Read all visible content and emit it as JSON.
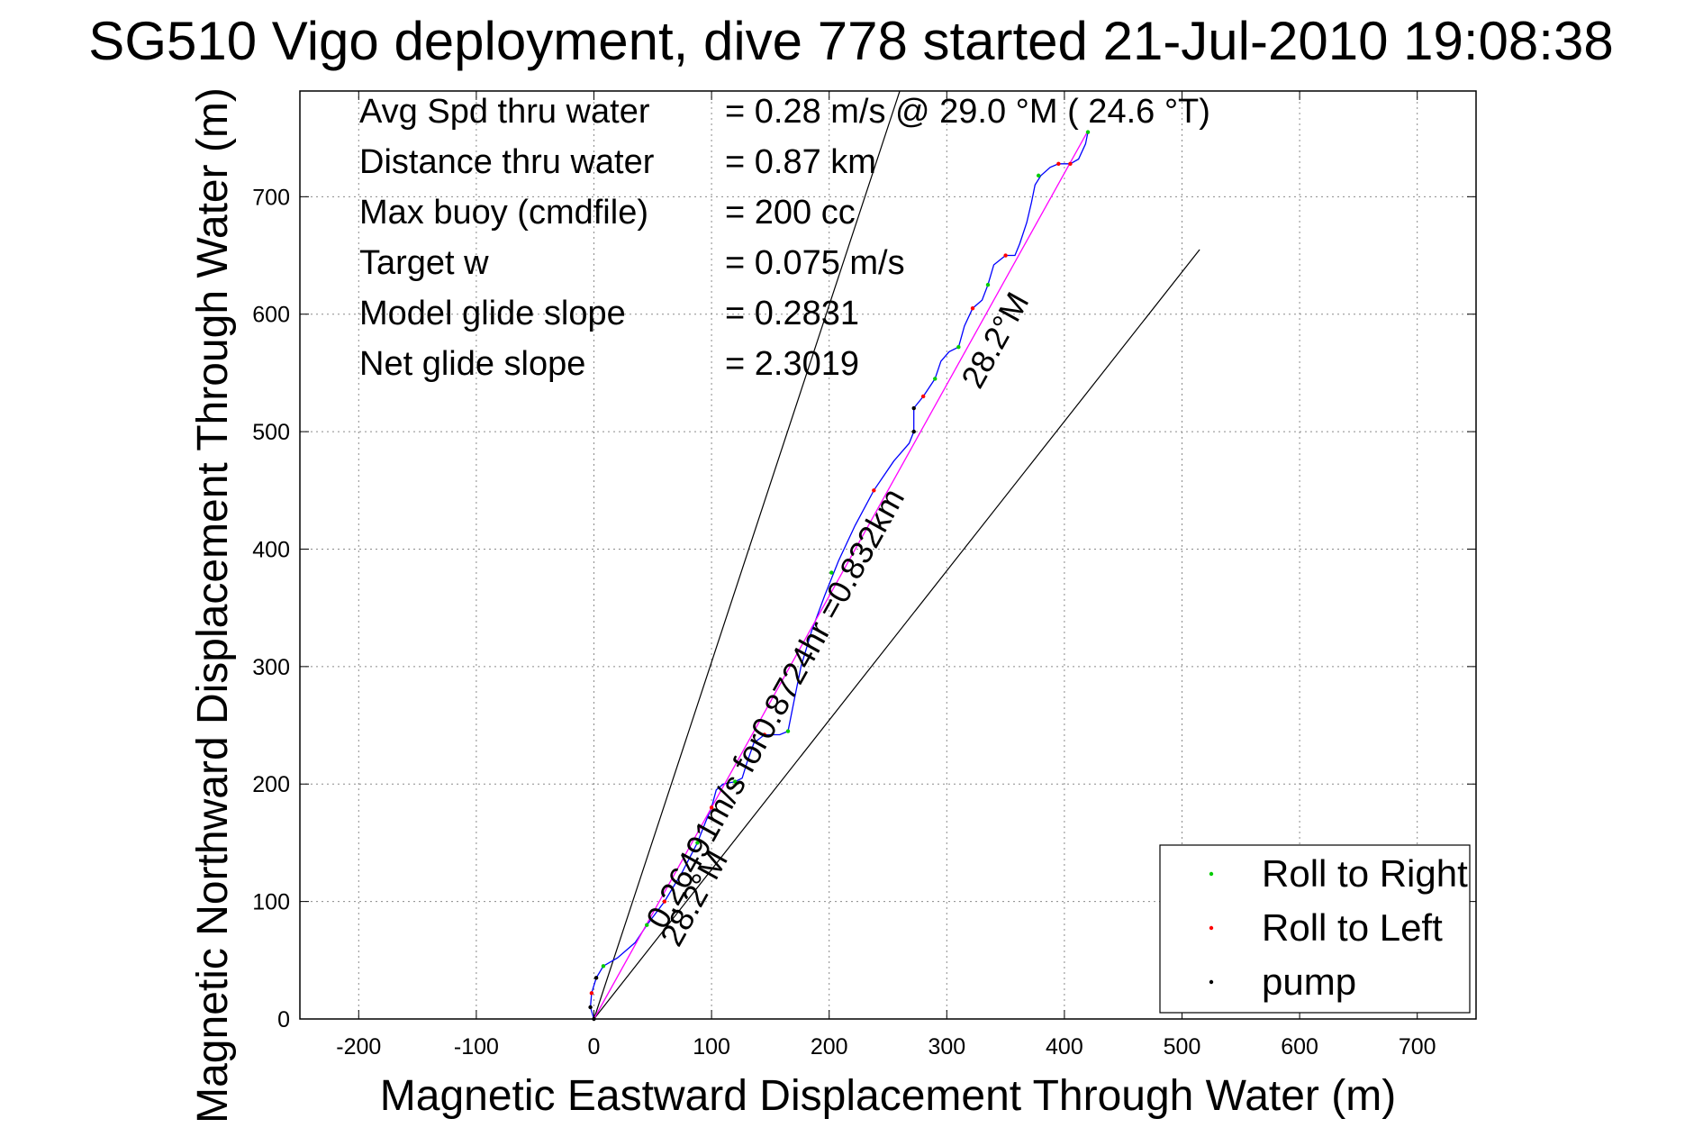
{
  "chart_data": {
    "type": "line",
    "title": "SG510 Vigo deployment, dive 778 started 21-Jul-2010 19:08:38",
    "xlabel": "Magnetic Eastward Displacement Through Water (m)",
    "ylabel": "Magnetic Northward Displacement Through Water (m)",
    "xlim": [
      -250,
      750
    ],
    "ylim": [
      0,
      790
    ],
    "xticks": [
      -200,
      -100,
      0,
      100,
      200,
      300,
      400,
      500,
      600,
      700
    ],
    "yticks": [
      0,
      100,
      200,
      300,
      400,
      500,
      600,
      700
    ],
    "grid": true,
    "legend_position": "bottom-right",
    "info_lines": [
      {
        "label": "Avg Spd thru water",
        "value": "=  0.28 m/s @  29.0 °M ( 24.6 °T)"
      },
      {
        "label": "Distance thru water",
        "value": "=  0.87 km"
      },
      {
        "label": "Max buoy (cmdfile)",
        "value": "= 200 cc"
      },
      {
        "label": "Target w",
        "value": "= 0.075 m/s"
      },
      {
        "label": "Model glide slope",
        "value": "= 0.2831"
      },
      {
        "label": "Net glide slope",
        "value": "= 2.3019"
      }
    ],
    "annotations": [
      {
        "text": "0.26491m/s for0.8724hr =0.832km",
        "x": 60,
        "y": 75,
        "angle_deg": 61
      },
      {
        "text": "28.2°M",
        "x": 72,
        "y": 60,
        "angle_deg": 61
      },
      {
        "text": "28.2°M",
        "x": 328,
        "y": 535,
        "angle_deg": 61
      }
    ],
    "series": [
      {
        "color": "#0000ff",
        "values": [
          [
            0,
            0
          ],
          [
            -3,
            10
          ],
          [
            -2,
            22
          ],
          [
            2,
            35
          ],
          [
            8,
            45
          ],
          [
            20,
            52
          ],
          [
            35,
            65
          ],
          [
            45,
            80
          ],
          [
            60,
            100
          ],
          [
            75,
            125
          ],
          [
            88,
            150
          ],
          [
            95,
            168
          ],
          [
            100,
            180
          ],
          [
            104,
            195
          ],
          [
            110,
            200
          ],
          [
            120,
            202
          ],
          [
            126,
            205
          ],
          [
            130,
            218
          ],
          [
            136,
            235
          ],
          [
            145,
            242
          ],
          [
            158,
            242
          ],
          [
            165,
            245
          ],
          [
            170,
            270
          ],
          [
            176,
            300
          ],
          [
            185,
            330
          ],
          [
            196,
            360
          ],
          [
            208,
            390
          ],
          [
            222,
            420
          ],
          [
            238,
            450
          ],
          [
            255,
            475
          ],
          [
            268,
            490
          ],
          [
            272,
            500
          ],
          [
            272,
            520
          ],
          [
            280,
            530
          ],
          [
            290,
            545
          ],
          [
            295,
            560
          ],
          [
            302,
            568
          ],
          [
            310,
            572
          ],
          [
            315,
            590
          ],
          [
            322,
            605
          ],
          [
            330,
            612
          ],
          [
            335,
            625
          ],
          [
            340,
            642
          ],
          [
            350,
            650
          ],
          [
            358,
            650
          ],
          [
            362,
            660
          ],
          [
            368,
            678
          ],
          [
            372,
            695
          ],
          [
            375,
            710
          ],
          [
            380,
            718
          ],
          [
            388,
            725
          ],
          [
            395,
            728
          ],
          [
            405,
            728
          ],
          [
            412,
            732
          ],
          [
            418,
            745
          ],
          [
            420,
            755
          ]
        ]
      },
      {
        "color": "#ff00ff",
        "values": [
          [
            0,
            0
          ],
          [
            420,
            756
          ]
        ]
      }
    ],
    "reference_lines": [
      {
        "color": "#000000",
        "values": [
          [
            0,
            0
          ],
          [
            260,
            790
          ]
        ]
      },
      {
        "color": "#000000",
        "values": [
          [
            0,
            0
          ],
          [
            515,
            655
          ]
        ]
      }
    ],
    "markers": [
      {
        "name": "Roll to Right",
        "color": "#00cc00",
        "values": [
          [
            8,
            45
          ],
          [
            45,
            80
          ],
          [
            88,
            150
          ],
          [
            120,
            202
          ],
          [
            165,
            245
          ],
          [
            202,
            380
          ],
          [
            290,
            545
          ],
          [
            310,
            572
          ],
          [
            335,
            625
          ],
          [
            378,
            718
          ],
          [
            420,
            755
          ]
        ]
      },
      {
        "name": "Roll to Left",
        "color": "#ff0000",
        "values": [
          [
            -2,
            22
          ],
          [
            60,
            100
          ],
          [
            100,
            180
          ],
          [
            145,
            242
          ],
          [
            238,
            450
          ],
          [
            280,
            530
          ],
          [
            322,
            605
          ],
          [
            350,
            650
          ],
          [
            395,
            728
          ],
          [
            405,
            728
          ]
        ]
      },
      {
        "name": "pump",
        "color": "#000000",
        "values": [
          [
            0,
            0
          ],
          [
            -3,
            10
          ],
          [
            2,
            35
          ],
          [
            272,
            500
          ],
          [
            272,
            520
          ]
        ]
      }
    ],
    "legend": [
      {
        "label": "Roll to Right",
        "color": "#00cc00"
      },
      {
        "label": "Roll to Left",
        "color": "#ff0000"
      },
      {
        "label": "pump",
        "color": "#000000"
      }
    ]
  }
}
